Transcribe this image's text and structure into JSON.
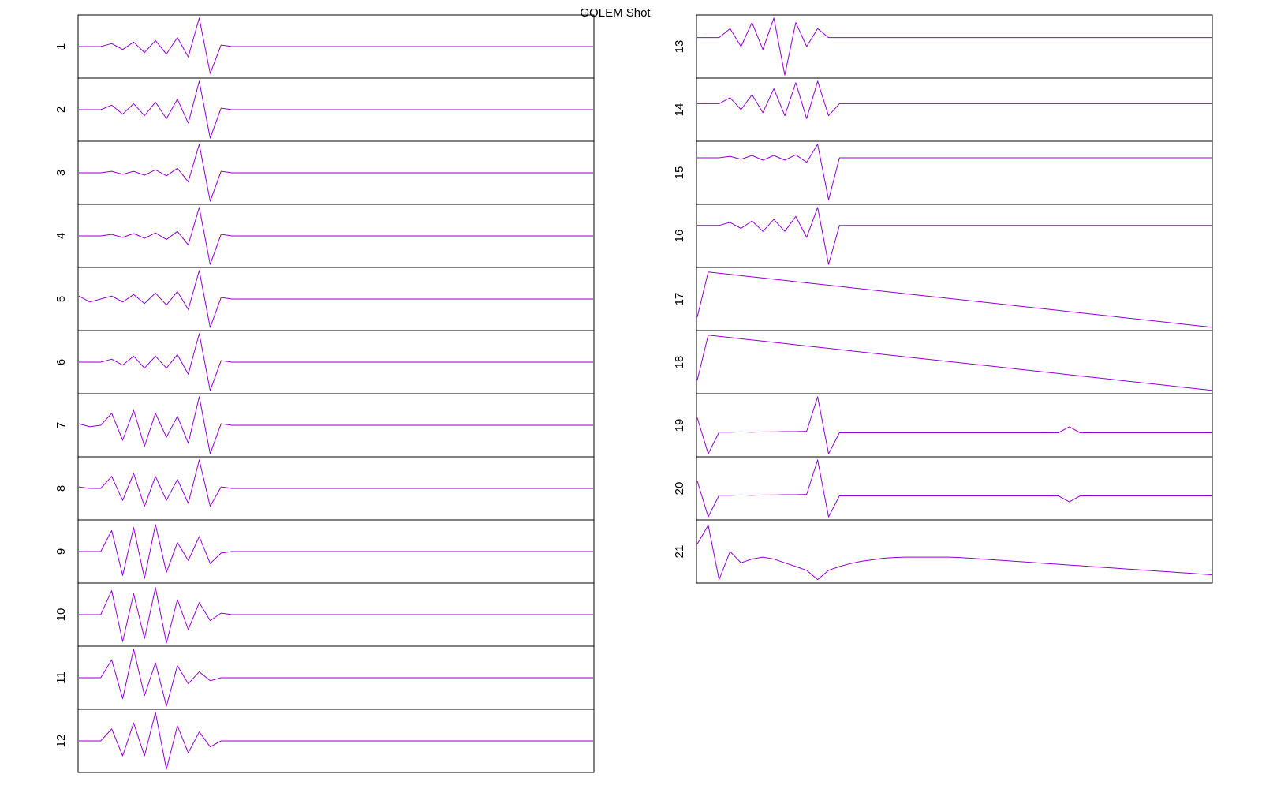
{
  "title": "GOLEM Shot",
  "chart_data": [
    {
      "type": "line",
      "label": "1",
      "color": "#9400d3",
      "ylim": [
        -1,
        1
      ],
      "values": [
        0,
        0,
        0,
        0.1,
        -0.1,
        0.15,
        -0.2,
        0.2,
        -0.25,
        0.3,
        -0.35,
        0.95,
        -0.9,
        0.05,
        0,
        0,
        0,
        0,
        0,
        0,
        0,
        0,
        0,
        0,
        0,
        0,
        0,
        0,
        0,
        0,
        0,
        0,
        0,
        0,
        0,
        0,
        0,
        0,
        0,
        0,
        0,
        0,
        0,
        0,
        0,
        0,
        0,
        0
      ]
    },
    {
      "type": "line",
      "label": "2",
      "color": "#9400d3",
      "ylim": [
        -1,
        1
      ],
      "values": [
        0,
        0,
        0,
        0.15,
        -0.15,
        0.2,
        -0.2,
        0.25,
        -0.3,
        0.35,
        -0.45,
        0.95,
        -0.95,
        0.05,
        0,
        0,
        0,
        0,
        0,
        0,
        0,
        0,
        0,
        0,
        0,
        0,
        0,
        0,
        0,
        0,
        0,
        0,
        0,
        0,
        0,
        0,
        0,
        0,
        0,
        0,
        0,
        0,
        0,
        0,
        0,
        0,
        0,
        0
      ]
    },
    {
      "type": "line",
      "label": "3",
      "color": "#9400d3",
      "ylim": [
        -1,
        1
      ],
      "values": [
        0,
        0,
        0,
        0.05,
        -0.05,
        0.05,
        -0.08,
        0.1,
        -0.1,
        0.15,
        -0.3,
        0.95,
        -0.95,
        0.05,
        0,
        0,
        0,
        0,
        0,
        0,
        0,
        0,
        0,
        0,
        0,
        0,
        0,
        0,
        0,
        0,
        0,
        0,
        0,
        0,
        0,
        0,
        0,
        0,
        0,
        0,
        0,
        0,
        0,
        0,
        0,
        0,
        0,
        0
      ]
    },
    {
      "type": "line",
      "label": "4",
      "color": "#9400d3",
      "ylim": [
        -1,
        1
      ],
      "values": [
        0,
        0,
        0,
        0.05,
        -0.05,
        0.08,
        -0.08,
        0.1,
        -0.12,
        0.15,
        -0.3,
        0.95,
        -0.95,
        0.05,
        0,
        0,
        0,
        0,
        0,
        0,
        0,
        0,
        0,
        0,
        0,
        0,
        0,
        0,
        0,
        0,
        0,
        0,
        0,
        0,
        0,
        0,
        0,
        0,
        0,
        0,
        0,
        0,
        0,
        0,
        0,
        0,
        0,
        0
      ]
    },
    {
      "type": "line",
      "label": "5",
      "color": "#9400d3",
      "ylim": [
        -1,
        1
      ],
      "values": [
        0.1,
        -0.1,
        0,
        0.1,
        -0.1,
        0.15,
        -0.15,
        0.2,
        -0.2,
        0.25,
        -0.35,
        0.95,
        -0.95,
        0.05,
        0,
        0,
        0,
        0,
        0,
        0,
        0,
        0,
        0,
        0,
        0,
        0,
        0,
        0,
        0,
        0,
        0,
        0,
        0,
        0,
        0,
        0,
        0,
        0,
        0,
        0,
        0,
        0,
        0,
        0,
        0,
        0,
        0,
        0
      ]
    },
    {
      "type": "line",
      "label": "6",
      "color": "#9400d3",
      "ylim": [
        -1,
        1
      ],
      "values": [
        0,
        0,
        0,
        0.1,
        -0.1,
        0.2,
        -0.2,
        0.2,
        -0.2,
        0.25,
        -0.4,
        0.95,
        -0.95,
        0.05,
        0,
        0,
        0,
        0,
        0,
        0,
        0,
        0,
        0,
        0,
        0,
        0,
        0,
        0,
        0,
        0,
        0,
        0,
        0,
        0,
        0,
        0,
        0,
        0,
        0,
        0,
        0,
        0,
        0,
        0,
        0,
        0,
        0,
        0
      ]
    },
    {
      "type": "line",
      "label": "7",
      "color": "#9400d3",
      "ylim": [
        -1,
        1
      ],
      "values": [
        0.05,
        -0.05,
        0,
        0.4,
        -0.5,
        0.5,
        -0.7,
        0.4,
        -0.4,
        0.3,
        -0.6,
        0.95,
        -0.95,
        0.05,
        0,
        0,
        0,
        0,
        0,
        0,
        0,
        0,
        0,
        0,
        0,
        0,
        0,
        0,
        0,
        0,
        0,
        0,
        0,
        0,
        0,
        0,
        0,
        0,
        0,
        0,
        0,
        0,
        0,
        0,
        0,
        0,
        0,
        0
      ]
    },
    {
      "type": "line",
      "label": "8",
      "color": "#9400d3",
      "ylim": [
        -1,
        1
      ],
      "values": [
        0.05,
        0,
        0,
        0.4,
        -0.4,
        0.5,
        -0.6,
        0.4,
        -0.4,
        0.3,
        -0.5,
        0.95,
        -0.6,
        0.05,
        0,
        0,
        0,
        0,
        0,
        0,
        0,
        0,
        0,
        0,
        0,
        0,
        0,
        0,
        0,
        0,
        0,
        0,
        0,
        0,
        0,
        0,
        0,
        0,
        0,
        0,
        0,
        0,
        0,
        0,
        0,
        0,
        0,
        0
      ]
    },
    {
      "type": "line",
      "label": "9",
      "color": "#9400d3",
      "ylim": [
        -1,
        1
      ],
      "values": [
        0,
        0,
        0,
        0.7,
        -0.8,
        0.8,
        -0.9,
        0.9,
        -0.7,
        0.3,
        -0.3,
        0.5,
        -0.4,
        -0.05,
        0,
        0,
        0,
        0,
        0,
        0,
        0,
        0,
        0,
        0,
        0,
        0,
        0,
        0,
        0,
        0,
        0,
        0,
        0,
        0,
        0,
        0,
        0,
        0,
        0,
        0,
        0,
        0,
        0,
        0,
        0,
        0,
        0,
        0
      ]
    },
    {
      "type": "line",
      "label": "10",
      "color": "#9400d3",
      "ylim": [
        -1,
        1
      ],
      "values": [
        0,
        0,
        0,
        0.8,
        -0.9,
        0.7,
        -0.8,
        0.9,
        -0.95,
        0.5,
        -0.5,
        0.4,
        -0.2,
        0.05,
        0,
        0,
        0,
        0,
        0,
        0,
        0,
        0,
        0,
        0,
        0,
        0,
        0,
        0,
        0,
        0,
        0,
        0,
        0,
        0,
        0,
        0,
        0,
        0,
        0,
        0,
        0,
        0,
        0,
        0,
        0,
        0,
        0,
        0
      ]
    },
    {
      "type": "line",
      "label": "11",
      "color": "#9400d3",
      "ylim": [
        -1,
        1
      ],
      "values": [
        0,
        0,
        0,
        0.6,
        -0.7,
        0.95,
        -0.6,
        0.5,
        -0.95,
        0.4,
        -0.2,
        0.2,
        -0.1,
        0,
        0,
        0,
        0,
        0,
        0,
        0,
        0,
        0,
        0,
        0,
        0,
        0,
        0,
        0,
        0,
        0,
        0,
        0,
        0,
        0,
        0,
        0,
        0,
        0,
        0,
        0,
        0,
        0,
        0,
        0,
        0,
        0,
        0,
        0
      ]
    },
    {
      "type": "line",
      "label": "12",
      "color": "#9400d3",
      "ylim": [
        -1,
        1
      ],
      "values": [
        0,
        0,
        0,
        0.4,
        -0.5,
        0.6,
        -0.5,
        0.95,
        -0.95,
        0.5,
        -0.4,
        0.3,
        -0.2,
        0,
        0,
        0,
        0,
        0,
        0,
        0,
        0,
        0,
        0,
        0,
        0,
        0,
        0,
        0,
        0,
        0,
        0,
        0,
        0,
        0,
        0,
        0,
        0,
        0,
        0,
        0,
        0,
        0,
        0,
        0,
        0,
        0,
        0,
        0
      ]
    },
    {
      "type": "line",
      "label": "13",
      "color": "#9400d3",
      "ylim": [
        -1.3,
        0.7
      ],
      "values": [
        0,
        0,
        0,
        0.3,
        -0.3,
        0.5,
        -0.4,
        0.65,
        -1.25,
        0.5,
        -0.3,
        0.3,
        0,
        0,
        0,
        0,
        0,
        0,
        0,
        0,
        0,
        0,
        0,
        0,
        0,
        0,
        0,
        0,
        0,
        0,
        0,
        0,
        0,
        0,
        0,
        0,
        0,
        0,
        0,
        0,
        0,
        0,
        0,
        0,
        0,
        0,
        0,
        0
      ]
    },
    {
      "type": "line",
      "label": "14",
      "color": "#9400d3",
      "ylim": [
        -1.2,
        0.8
      ],
      "values": [
        0,
        0,
        0,
        0.2,
        -0.2,
        0.3,
        -0.3,
        0.5,
        -0.4,
        0.7,
        -0.5,
        0.75,
        -0.4,
        0,
        0,
        0,
        0,
        0,
        0,
        0,
        0,
        0,
        0,
        0,
        0,
        0,
        0,
        0,
        0,
        0,
        0,
        0,
        0,
        0,
        0,
        0,
        0,
        0,
        0,
        0,
        0,
        0,
        0,
        0,
        0,
        0,
        0,
        0
      ]
    },
    {
      "type": "line",
      "label": "15",
      "color": "#9400d3",
      "ylim": [
        -1.5,
        0.5
      ],
      "values": [
        0,
        0,
        0,
        0.05,
        -0.05,
        0.08,
        -0.08,
        0.08,
        -0.08,
        0.1,
        -0.15,
        0.45,
        -1.4,
        0,
        0,
        0,
        0,
        0,
        0,
        0,
        0,
        0,
        0,
        0,
        0,
        0,
        0,
        0,
        0,
        0,
        0,
        0,
        0,
        0,
        0,
        0,
        0,
        0,
        0,
        0,
        0,
        0,
        0,
        0,
        0,
        0,
        0,
        0
      ]
    },
    {
      "type": "line",
      "label": "16",
      "color": "#9400d3",
      "ylim": [
        -1.35,
        0.65
      ],
      "values": [
        0,
        0,
        0,
        0.1,
        -0.1,
        0.15,
        -0.2,
        0.2,
        -0.2,
        0.3,
        -0.4,
        0.6,
        -1.3,
        0,
        0,
        0,
        0,
        0,
        0,
        0,
        0,
        0,
        0,
        0,
        0,
        0,
        0,
        0,
        0,
        0,
        0,
        0,
        0,
        0,
        0,
        0,
        0,
        0,
        0,
        0,
        0,
        0,
        0,
        0,
        0,
        0,
        0,
        0
      ]
    },
    {
      "type": "line",
      "label": "17",
      "color": "#9400d3",
      "ylim": [
        -1,
        1
      ],
      "values": [
        -0.6,
        0.9,
        0.86,
        0.82,
        0.78,
        0.74,
        0.7,
        0.66,
        0.62,
        0.58,
        0.54,
        0.5,
        0.46,
        0.42,
        0.38,
        0.34,
        0.3,
        0.26,
        0.22,
        0.18,
        0.14,
        0.1,
        0.06,
        0.02,
        -0.02,
        -0.06,
        -0.1,
        -0.14,
        -0.18,
        -0.22,
        -0.26,
        -0.3,
        -0.34,
        -0.38,
        -0.42,
        -0.46,
        -0.5,
        -0.54,
        -0.58,
        -0.62,
        -0.66,
        -0.7,
        -0.74,
        -0.78,
        -0.82,
        -0.86,
        -0.9,
        -0.94
      ]
    },
    {
      "type": "line",
      "label": "18",
      "color": "#9400d3",
      "ylim": [
        -1,
        1
      ],
      "values": [
        -0.6,
        0.9,
        0.86,
        0.82,
        0.78,
        0.74,
        0.7,
        0.66,
        0.62,
        0.58,
        0.54,
        0.5,
        0.46,
        0.42,
        0.38,
        0.34,
        0.3,
        0.26,
        0.22,
        0.18,
        0.14,
        0.1,
        0.06,
        0.02,
        -0.02,
        -0.06,
        -0.1,
        -0.14,
        -0.18,
        -0.22,
        -0.26,
        -0.3,
        -0.34,
        -0.38,
        -0.42,
        -0.46,
        -0.5,
        -0.54,
        -0.58,
        -0.62,
        -0.66,
        -0.7,
        -0.74,
        -0.78,
        -0.82,
        -0.86,
        -0.9,
        -0.94
      ]
    },
    {
      "type": "line",
      "label": "19",
      "color": "#9400d3",
      "ylim": [
        -0.75,
        1.25
      ],
      "values": [
        0.5,
        -0.7,
        0.02,
        0.02,
        0.03,
        0.02,
        0.03,
        0.03,
        0.04,
        0.04,
        0.05,
        1.2,
        -0.7,
        0,
        0,
        0,
        0,
        0,
        0,
        0,
        0,
        0,
        0,
        0,
        0,
        0,
        0,
        0,
        0,
        0,
        0,
        0,
        0,
        0,
        0.2,
        0,
        0,
        0,
        0,
        0,
        0,
        0,
        0,
        0,
        0,
        0,
        0,
        0
      ]
    },
    {
      "type": "line",
      "label": "20",
      "color": "#9400d3",
      "ylim": [
        -0.75,
        1.25
      ],
      "values": [
        0.5,
        -0.7,
        0.02,
        0.02,
        0.03,
        0.02,
        0.03,
        0.03,
        0.04,
        0.04,
        0.05,
        1.2,
        -0.7,
        0,
        0,
        0,
        0,
        0,
        0,
        0,
        0,
        0,
        0,
        0,
        0,
        0,
        0,
        0,
        0,
        0,
        0,
        0,
        0,
        0,
        -0.2,
        0,
        0,
        0,
        0,
        0,
        0,
        0,
        0,
        0,
        0,
        0,
        0,
        0
      ]
    },
    {
      "type": "line",
      "label": "21",
      "color": "#9400d3",
      "ylim": [
        -0.6,
        1
      ],
      "values": [
        0.4,
        0.9,
        -0.55,
        0.2,
        -0.1,
        0,
        0.05,
        0,
        -0.1,
        -0.2,
        -0.3,
        -0.55,
        -0.3,
        -0.2,
        -0.12,
        -0.06,
        -0.02,
        0.02,
        0.04,
        0.05,
        0.05,
        0.05,
        0.05,
        0.05,
        0.04,
        0.02,
        0,
        -0.02,
        -0.04,
        -0.06,
        -0.08,
        -0.1,
        -0.12,
        -0.14,
        -0.16,
        -0.18,
        -0.2,
        -0.22,
        -0.24,
        -0.26,
        -0.28,
        -0.3,
        -0.32,
        -0.34,
        -0.36,
        -0.38,
        -0.4,
        -0.42
      ]
    }
  ]
}
